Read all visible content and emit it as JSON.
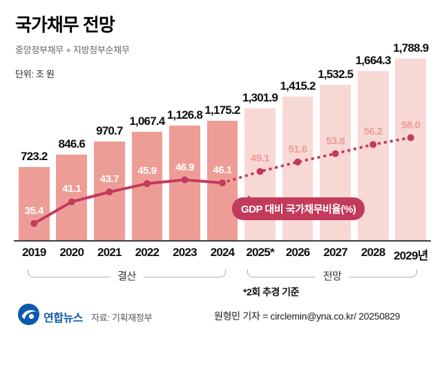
{
  "header": {
    "title": "국가채무 전망",
    "subtitle": "중앙정부채무 + 지방정부순채무",
    "unit": "단위: 조 원"
  },
  "chart_data": {
    "type": "bar",
    "title": "국가채무 전망",
    "categories": [
      "2019",
      "2020",
      "2021",
      "2022",
      "2023",
      "2024",
      "2025*",
      "2026",
      "2027",
      "2028",
      "2029년"
    ],
    "series": [
      {
        "name": "국가채무 (조 원)",
        "type": "bar",
        "values": [
          723.2,
          846.6,
          970.7,
          1067.4,
          1126.8,
          1175.2,
          1301.9,
          1415.2,
          1532.5,
          1664.3,
          1788.9
        ],
        "labels": [
          "723.2",
          "846.6",
          "970.7",
          "1,067.4",
          "1,126.8",
          "1,175.2",
          "1,301.9",
          "1,415.2",
          "1,532.5",
          "1,664.3",
          "1,788.9"
        ]
      },
      {
        "name": "GDP 대비 국가채무비율(%)",
        "type": "line",
        "values": [
          35.4,
          41.1,
          43.7,
          45.9,
          46.9,
          46.1,
          49.1,
          51.6,
          53.8,
          56.2,
          58.0
        ]
      }
    ],
    "actual_count": 6,
    "groups": [
      {
        "label": "결산",
        "from": 0,
        "to": 5
      },
      {
        "label": "전망",
        "from": 6,
        "to": 10
      }
    ],
    "line_label": "GDP 대비 국가채무비율(%)",
    "footnote": "*2회 추경 기준",
    "ylim": [
      0,
      2095
    ],
    "legend_position": "inline-badge",
    "grid": false,
    "colors": {
      "bar_actual": "#ee9d96",
      "bar_forecast": "#f8d8d5",
      "line": "#c23a5c",
      "ratio_label_actual": "#ffffff",
      "ratio_label_forecast": "#ee9d96",
      "logo_blue": "#0c5aac"
    }
  },
  "footer": {
    "logo_text": "연합뉴스",
    "source": "자료: 기획재정부",
    "credit": "원형민 기자 = circlemin@yna.co.kr/ 20250829"
  }
}
